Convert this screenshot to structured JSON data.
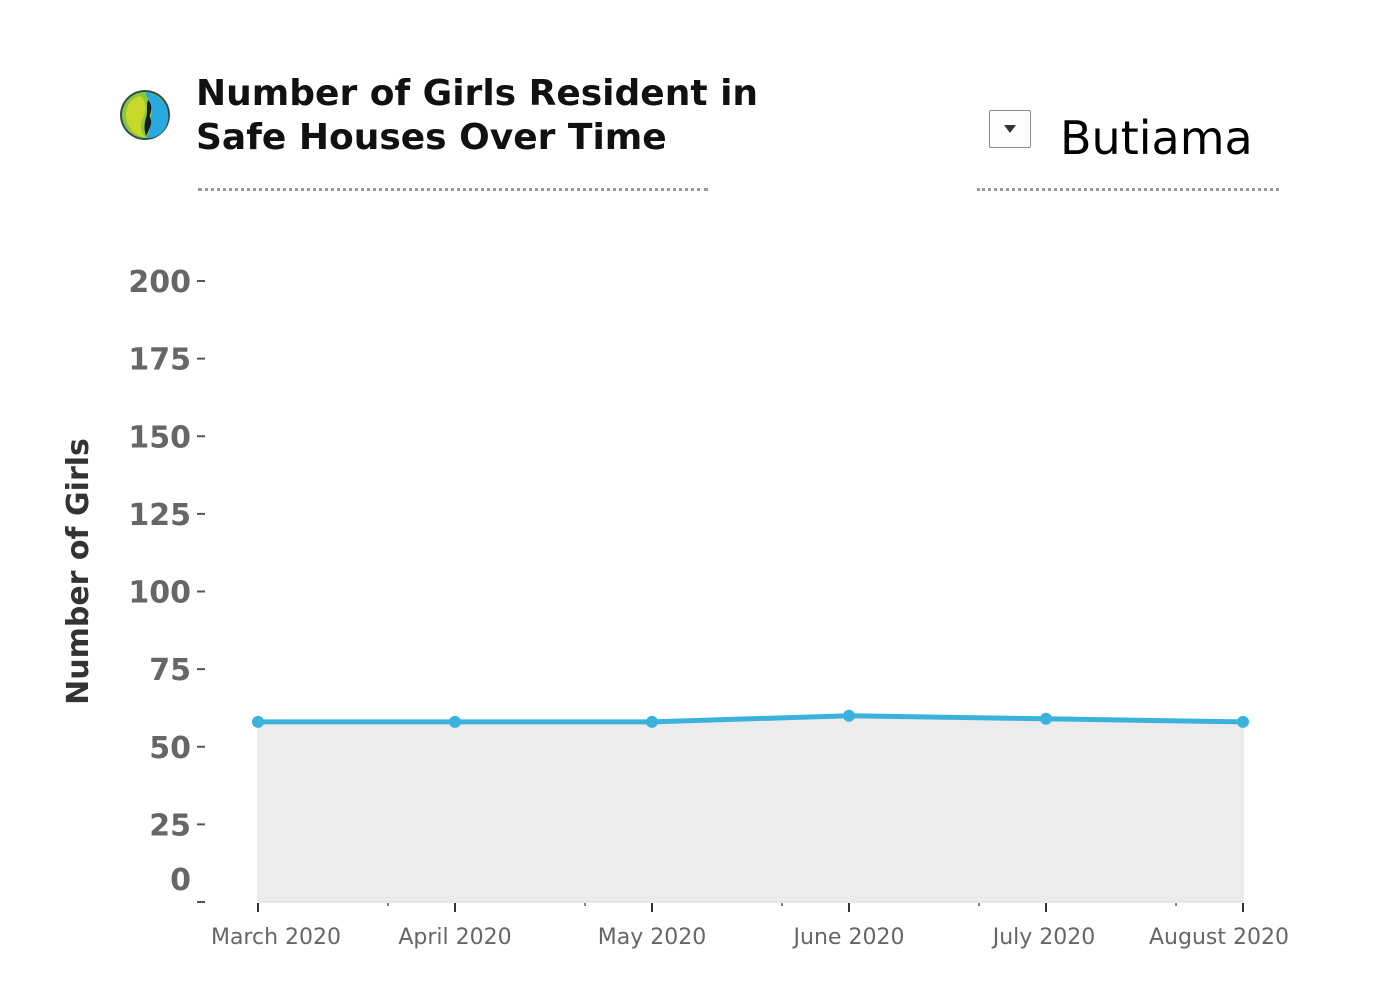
{
  "header": {
    "title_line1": "Number of Girls Resident in",
    "title_line2": "Safe Houses Over Time",
    "logo_icon": "girl-profile-logo-icon"
  },
  "filter": {
    "selected_value": "Butiama",
    "dropdown_icon": "triangle-down-icon"
  },
  "colors": {
    "line": "#3bb2dc",
    "area": "#ececec",
    "text": "#666666"
  },
  "chart_data": {
    "type": "area",
    "ylabel": "Number of Girls",
    "xlabel": "",
    "ylim": [
      0,
      200
    ],
    "yticks": [
      0,
      25,
      50,
      75,
      100,
      125,
      150,
      175,
      200
    ],
    "categories": [
      "March 2020",
      "April 2020",
      "May 2020",
      "June 2020",
      "July 2020",
      "August 2020"
    ],
    "values": [
      58,
      58,
      58,
      60,
      59,
      58
    ],
    "grid": false,
    "markers": true
  }
}
